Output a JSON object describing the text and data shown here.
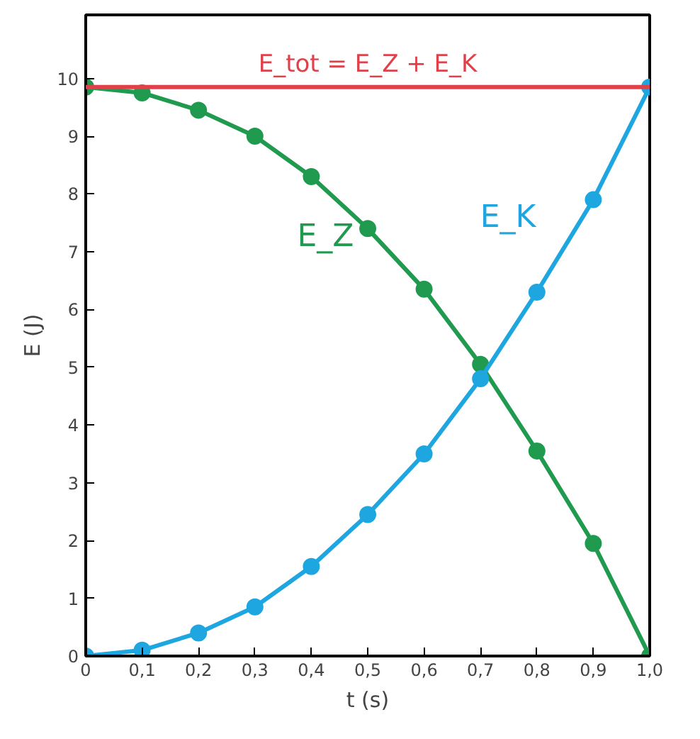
{
  "chart_data": {
    "type": "line",
    "x": [
      0,
      0.1,
      0.2,
      0.3,
      0.4,
      0.5,
      0.6,
      0.7,
      0.8,
      0.9,
      1.0
    ],
    "series": [
      {
        "name": "E_Z",
        "color": "#1f9a4f",
        "values": [
          9.85,
          9.75,
          9.45,
          9.0,
          8.3,
          7.4,
          6.35,
          5.05,
          3.55,
          1.95,
          0
        ]
      },
      {
        "name": "E_K",
        "color": "#1ea6e0",
        "values": [
          0,
          0.1,
          0.4,
          0.85,
          1.55,
          2.45,
          3.5,
          4.8,
          6.3,
          7.9,
          9.85
        ]
      }
    ],
    "ref_lines": [
      {
        "axis": "y",
        "value": 9.85,
        "label": "E_tot = E_Z + E_K",
        "color": "#e0404a"
      }
    ],
    "xlabel": "t (s)",
    "ylabel": "E (J)",
    "xlim": [
      0,
      1.0
    ],
    "ylim": [
      0,
      11.1
    ],
    "xticks": [
      0,
      {
        "value": 0.1,
        "label": "0,1"
      },
      {
        "value": 0.2,
        "label": "0,2"
      },
      {
        "value": 0.3,
        "label": "0,3"
      },
      {
        "value": 0.4,
        "label": "0,4"
      },
      {
        "value": 0.5,
        "label": "0,5"
      },
      {
        "value": 0.6,
        "label": "0,6"
      },
      {
        "value": 0.7,
        "label": "0,7"
      },
      {
        "value": 0.8,
        "label": "0,8"
      },
      {
        "value": 0.9,
        "label": "0,9"
      },
      {
        "value": 1.0,
        "label": "1,0"
      }
    ],
    "yticks": [
      0,
      1,
      2,
      3,
      4,
      5,
      6,
      7,
      8,
      9,
      10
    ],
    "marker": "circle",
    "line_style": "solid"
  }
}
